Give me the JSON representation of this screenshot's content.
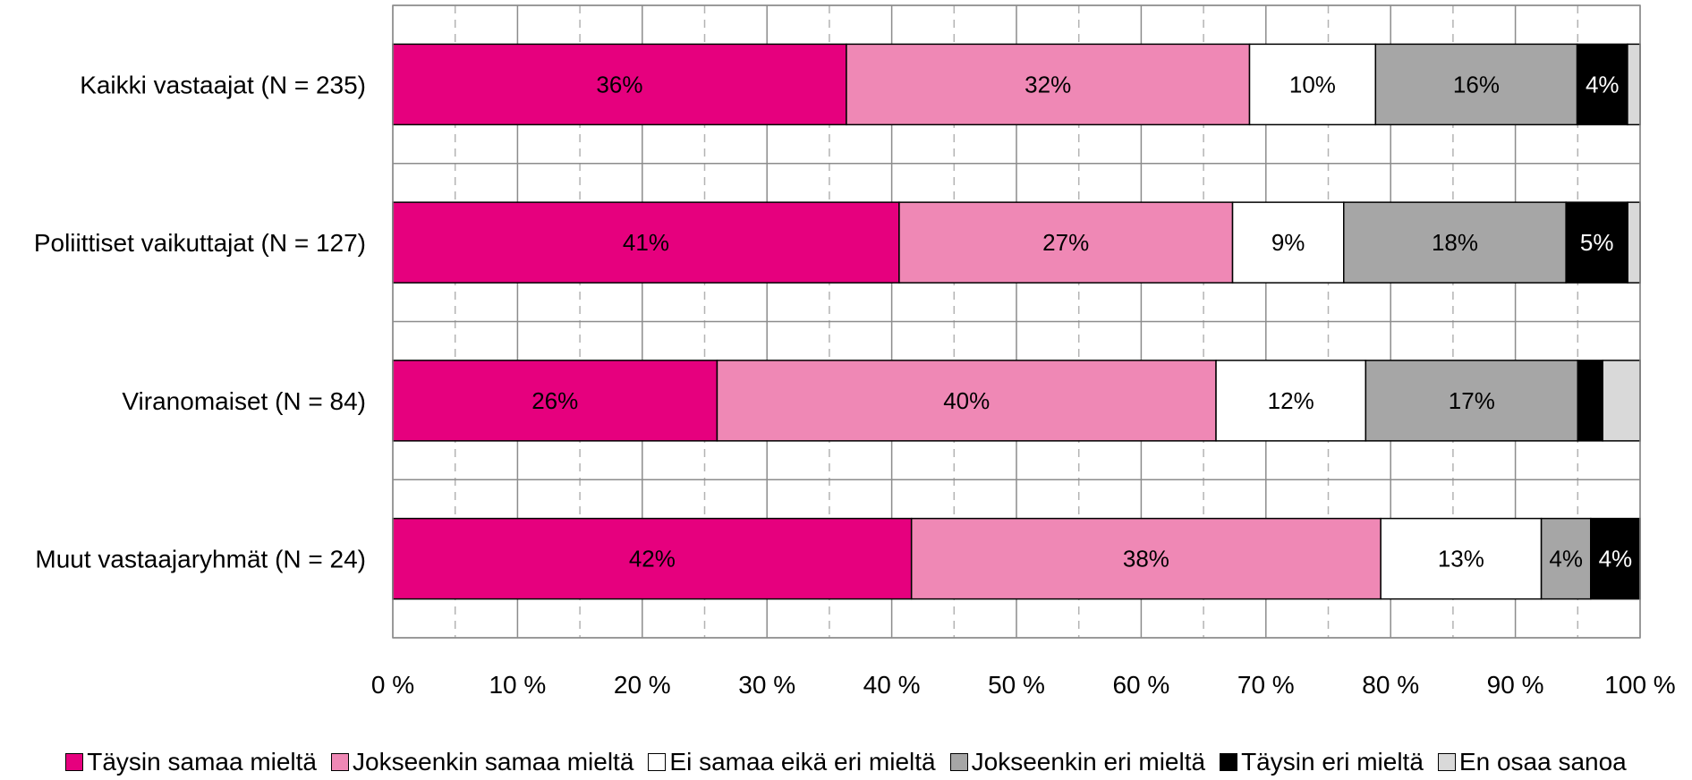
{
  "chart_data": {
    "type": "bar",
    "orientation": "horizontal",
    "stacked": "percent",
    "categories": [
      "Kaikki vastaajat (N = 235)",
      "Poliittiset vaikuttajat (N = 127)",
      "Viranomaiset (N = 84)",
      "Muut vastaajaryhmät (N = 24)"
    ],
    "series": [
      {
        "name": "Täysin samaa mieltä",
        "color": "#e6007e",
        "values": [
          36,
          41,
          26,
          42
        ],
        "labels": [
          "36%",
          "41%",
          "26%",
          "42%"
        ]
      },
      {
        "name": "Jokseenkin samaa mieltä",
        "color": "#ef88b5",
        "values": [
          32,
          27,
          40,
          38
        ],
        "labels": [
          "32%",
          "27%",
          "40%",
          "38%"
        ]
      },
      {
        "name": "Ei samaa eikä eri mieltä",
        "color": "#ffffff",
        "values": [
          10,
          9,
          12,
          13
        ],
        "labels": [
          "10%",
          "9%",
          "12%",
          "13%"
        ]
      },
      {
        "name": "Jokseenkin eri mieltä",
        "color": "#a6a6a6",
        "values": [
          16,
          18,
          17,
          4
        ],
        "labels": [
          "16%",
          "18%",
          "17%",
          "4%"
        ]
      },
      {
        "name": "Täysin eri mieltä",
        "color": "#000000",
        "values": [
          4,
          5,
          2,
          4
        ],
        "labels": [
          "4%",
          "5%",
          "",
          "4%"
        ]
      },
      {
        "name": "En osaa sanoa",
        "color": "#d9d9d9",
        "values": [
          1,
          1,
          3,
          0
        ],
        "labels": [
          "",
          "",
          "",
          ""
        ]
      }
    ],
    "xlim": [
      0,
      100
    ],
    "xticks": [
      "0 %",
      "10 %",
      "20 %",
      "30 %",
      "40 %",
      "50 %",
      "60 %",
      "70 %",
      "80 %",
      "90 %",
      "100 %"
    ],
    "grid": {
      "major": true,
      "minor_dashed": true
    },
    "legend": "bottom"
  }
}
